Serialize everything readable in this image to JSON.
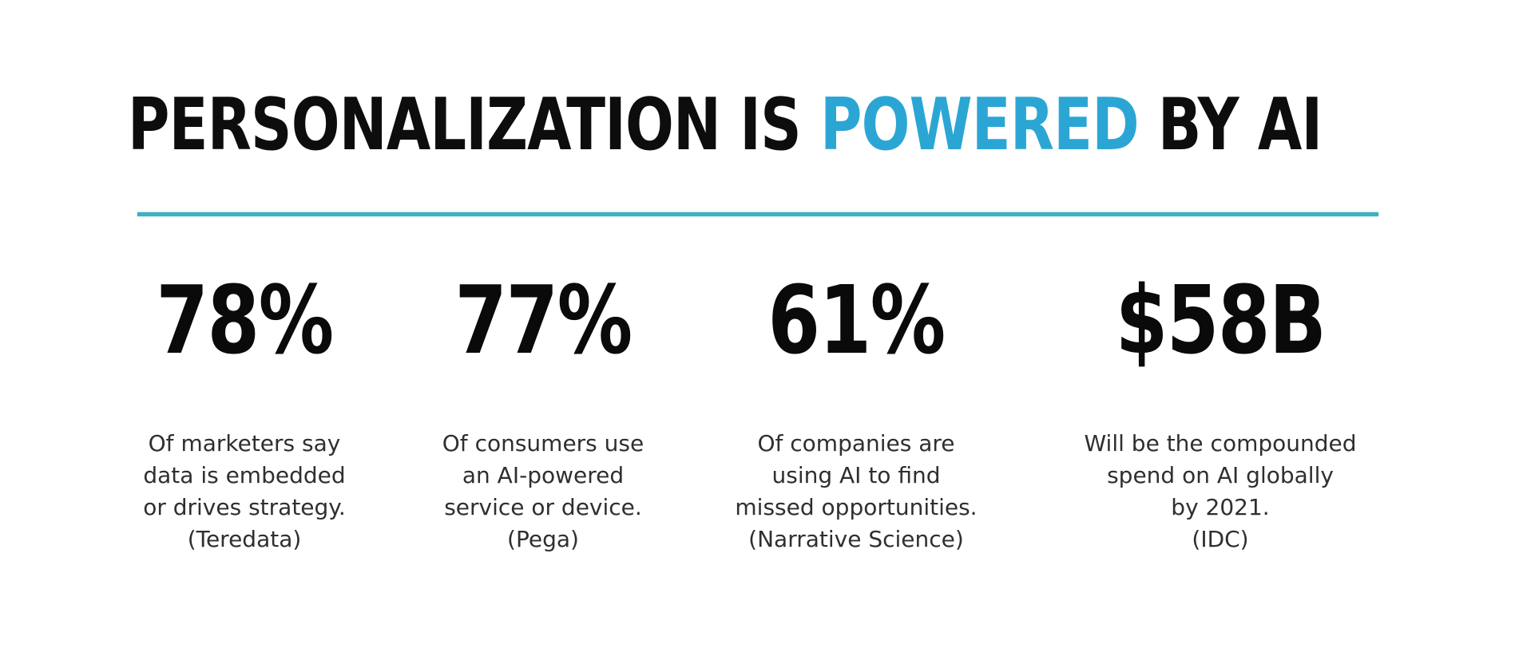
{
  "slide": {
    "title": {
      "pre": "PERSONALIZATION IS ",
      "highlight": "POWERED",
      "post": " BY AI"
    },
    "colors": {
      "background": "#ffffff",
      "title_text": "#0d0d0d",
      "title_highlight": "#2ba6d4",
      "divider": "#3fafc2",
      "stat_value": "#0a0a0a",
      "stat_description": "#2f2f2f"
    },
    "stats": [
      {
        "value": "78%",
        "description": "Of marketers say\ndata is embedded\nor drives strategy.\n(Teredata)",
        "source": "(Teredata)"
      },
      {
        "value": "77%",
        "description": "Of consumers use\nan AI-powered\nservice or device.\n(Pega)",
        "source": "(Pega)"
      },
      {
        "value": "61%",
        "description": "Of companies are\nusing AI to find\nmissed opportunities.\n(Narrative Science)",
        "source": "(Narrative Science)"
      },
      {
        "value": "$58B",
        "description": "Will be the compounded\nspend on AI globally\nby 2021.\n(IDC)",
        "source": "(IDC)"
      }
    ]
  }
}
